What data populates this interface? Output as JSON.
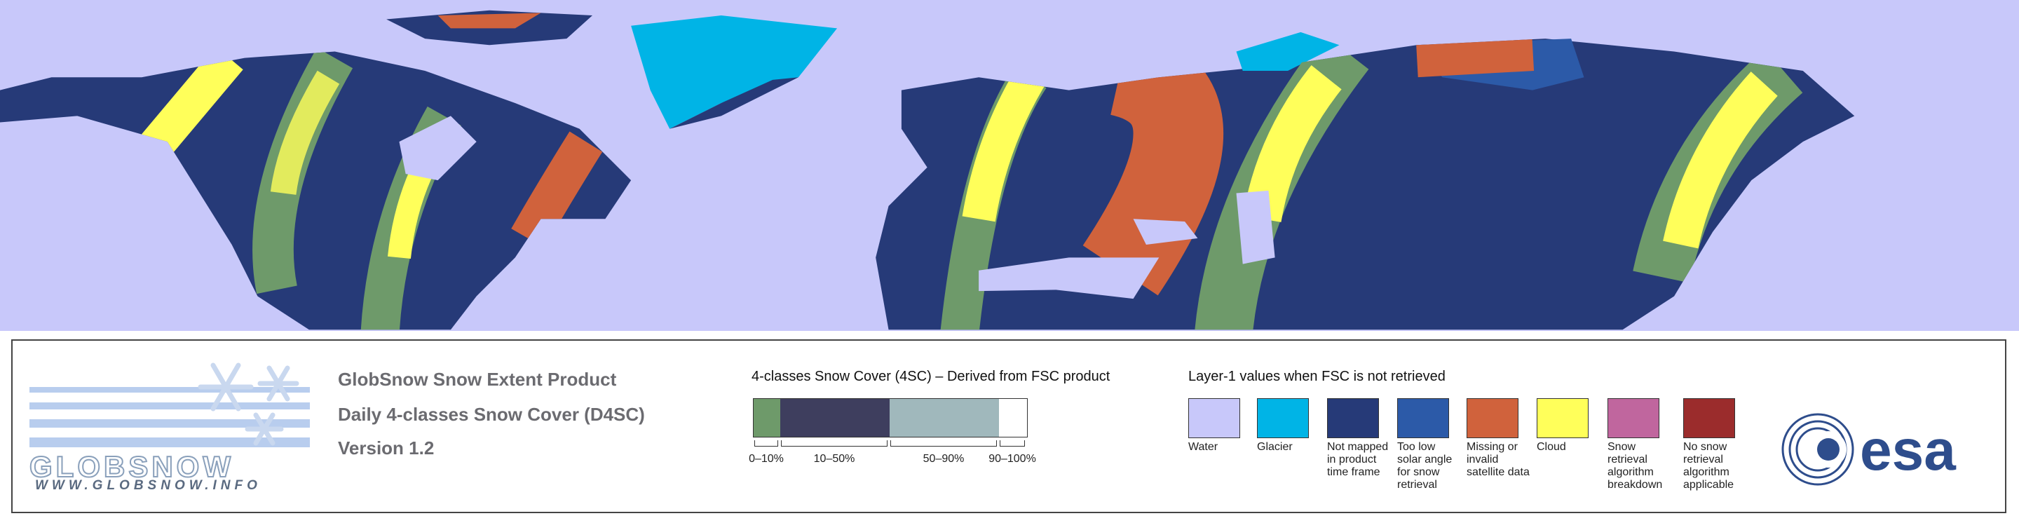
{
  "logo": {
    "name": "GLOBSNOW",
    "url": "WWW.GLOBSNOW.INFO"
  },
  "product": {
    "title": "GlobSnow Snow Extent Product",
    "subtitle": "Daily 4-classes Snow Cover (D4SC)",
    "version": "Version 1.2"
  },
  "snow_cover_legend": {
    "title": "4-classes Snow Cover (4SC) – Derived from FSC product",
    "classes": [
      {
        "label": "0–10%",
        "color": "#6e9a6a"
      },
      {
        "label": "10–50%",
        "color": "#3e3e5e"
      },
      {
        "label": "50–90%",
        "color": "#a0b8bc"
      },
      {
        "label": "90–100%",
        "color": "#ffffff"
      }
    ]
  },
  "layer1_legend": {
    "title": "Layer-1 values when FSC is not retrieved",
    "items": [
      {
        "label": "Water",
        "color": "#c8c8fa"
      },
      {
        "label": "Glacier",
        "color": "#00b4e6"
      },
      {
        "label": "Not mapped in product time frame",
        "color": "#263a78"
      },
      {
        "label": "Too low solar angle for snow retrieval",
        "color": "#2c5aa8"
      },
      {
        "label": "Missing or invalid satellite data",
        "color": "#d0623c"
      },
      {
        "label": "Cloud",
        "color": "#ffff5a"
      },
      {
        "label": "Snow retrieval algorithm breakdown",
        "color": "#c0669e"
      },
      {
        "label": "No snow retrieval algorithm applicable",
        "color": "#9b2c2c"
      }
    ]
  },
  "agency": {
    "name": "esa"
  }
}
